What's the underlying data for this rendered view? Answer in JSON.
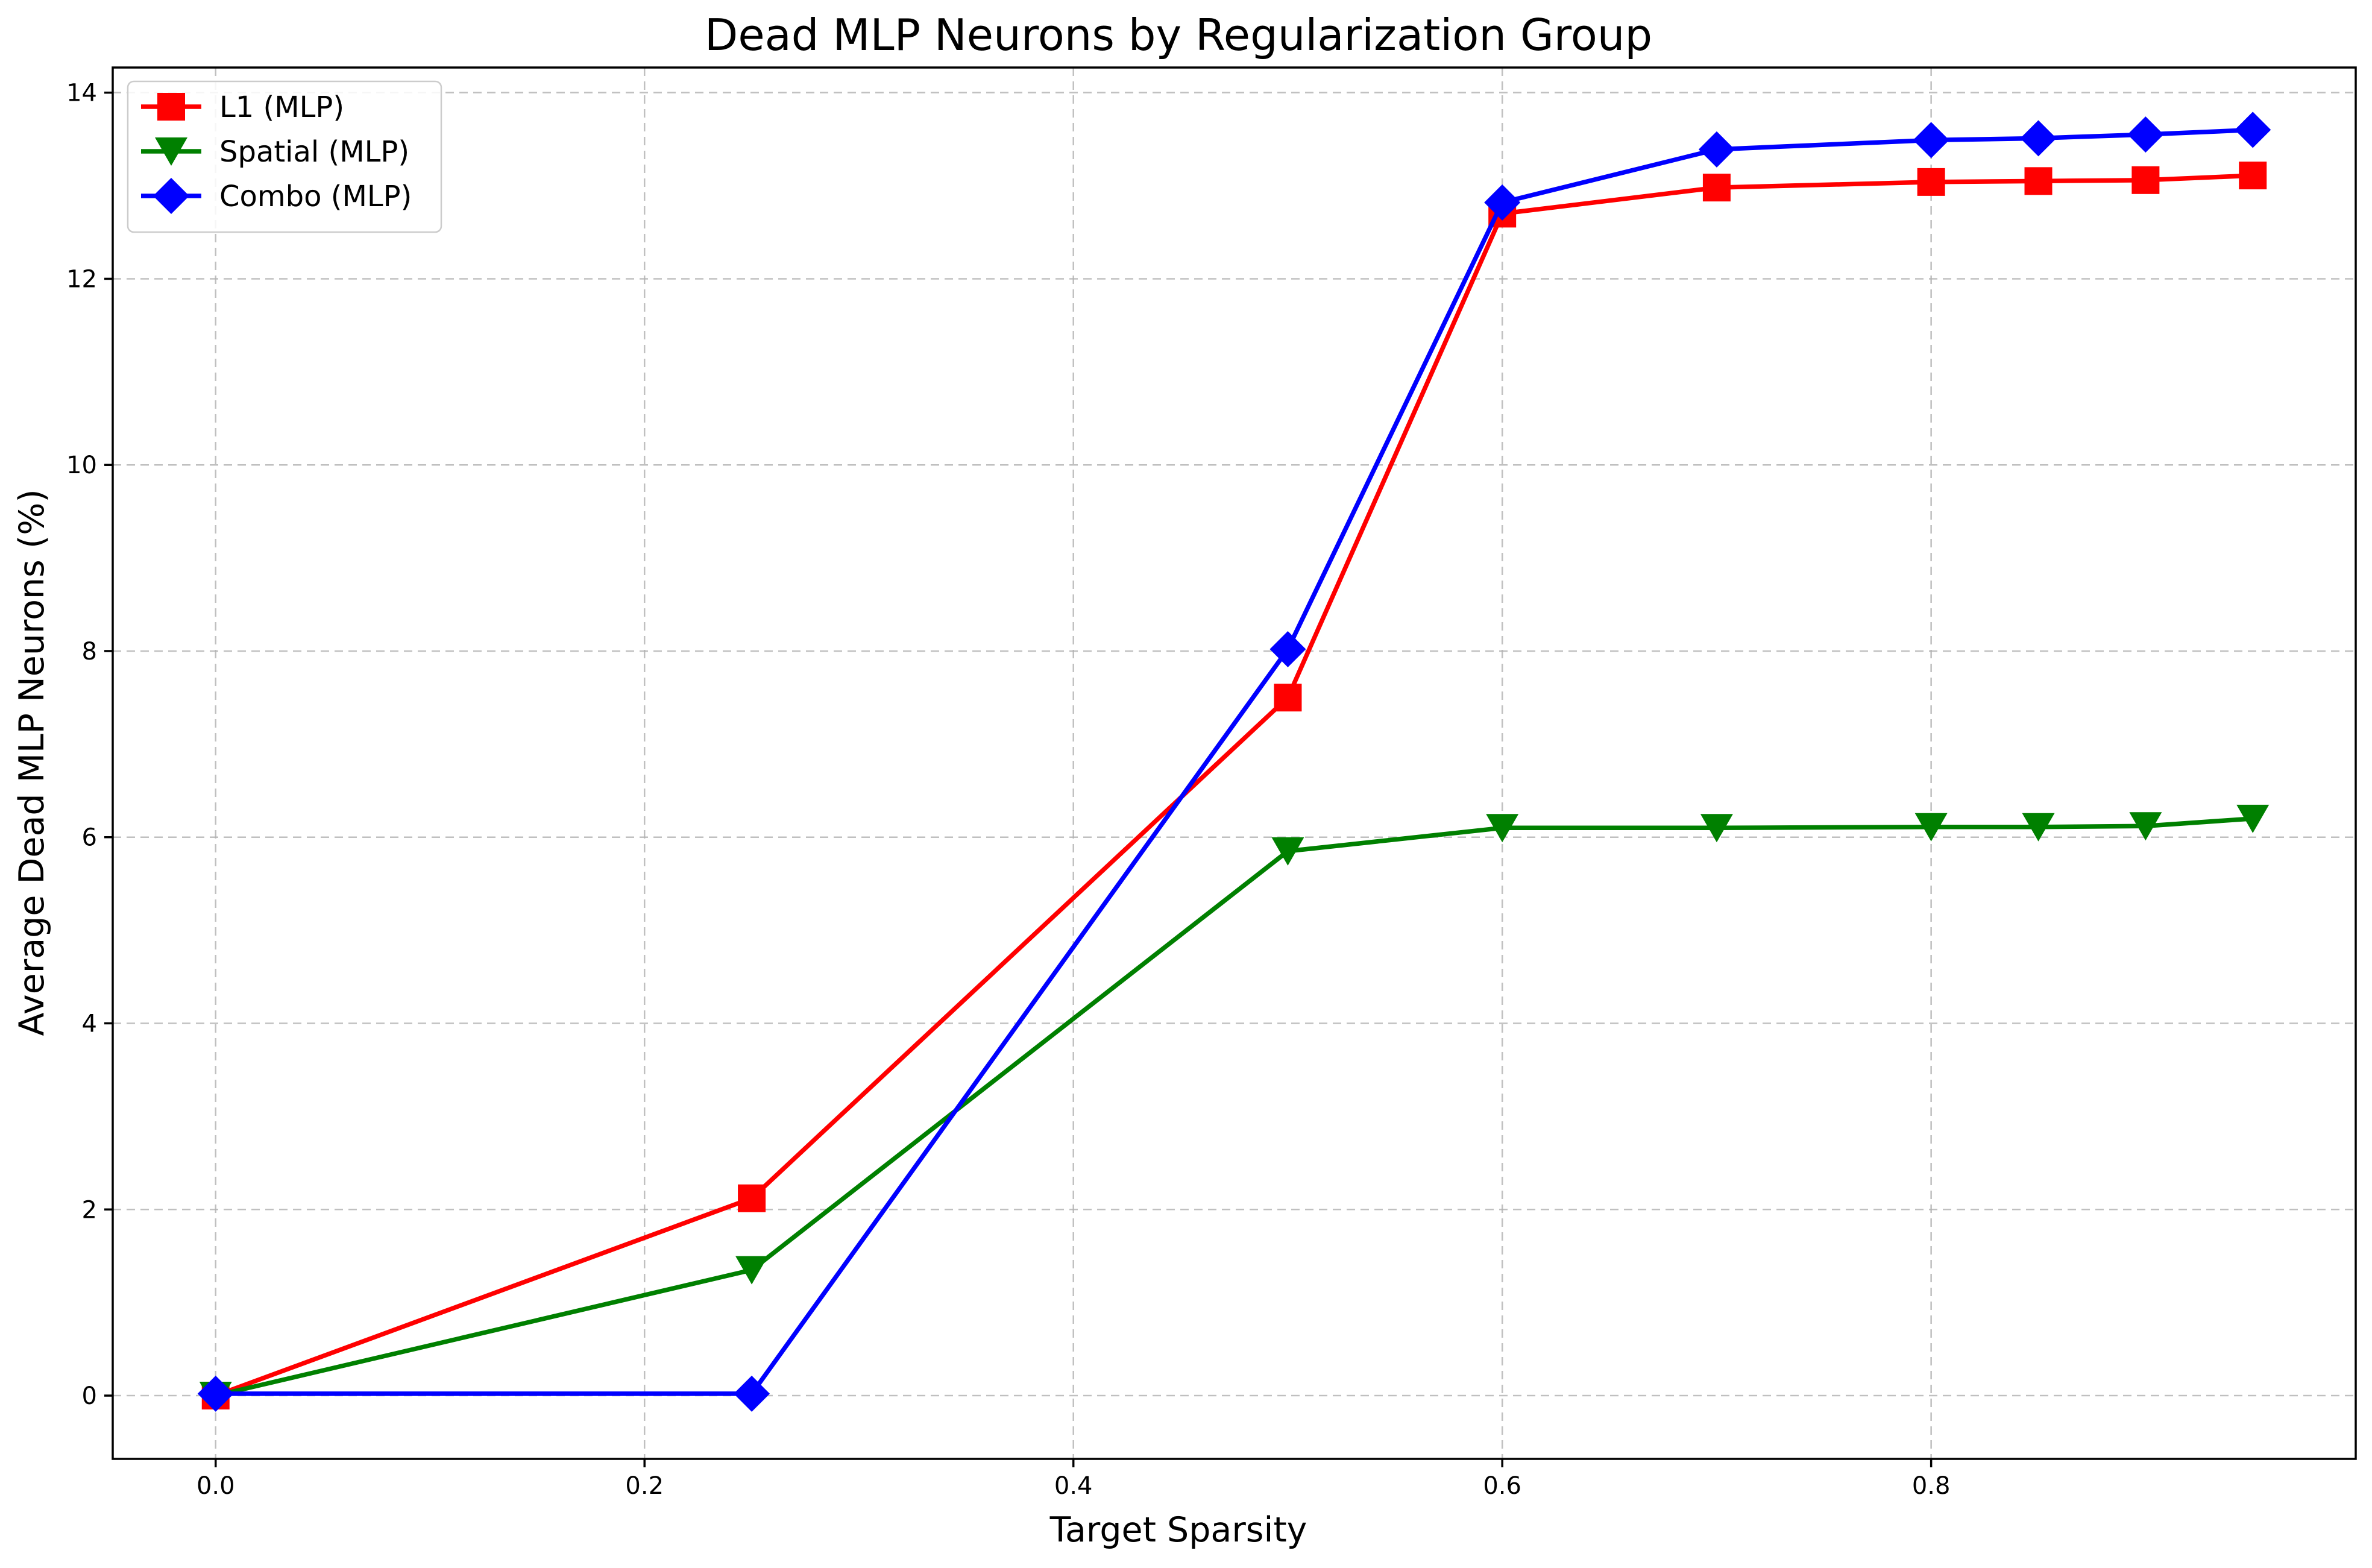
{
  "chart_data": {
    "type": "line",
    "title": "Dead MLP Neurons by Regularization Group",
    "xlabel": "Target Sparsity",
    "ylabel": "Average Dead MLP Neurons (%)",
    "xlim": [
      -0.048,
      0.998
    ],
    "ylim": [
      -0.68,
      14.27
    ],
    "xticks": [
      0.0,
      0.2,
      0.4,
      0.6,
      0.8
    ],
    "xtick_labels": [
      "0.0",
      "0.2",
      "0.4",
      "0.6",
      "0.8"
    ],
    "yticks": [
      0,
      2,
      4,
      6,
      8,
      10,
      12,
      14
    ],
    "ytick_labels": [
      "0",
      "2",
      "4",
      "6",
      "8",
      "10",
      "12",
      "14"
    ],
    "grid": true,
    "legend_position": "top-left",
    "series": [
      {
        "name": "L1 (MLP)",
        "color": "#ff0000",
        "marker": "square",
        "x": [
          0.0,
          0.25,
          0.5,
          0.6,
          0.7,
          0.8,
          0.85,
          0.9,
          0.95
        ],
        "y": [
          0.0,
          2.12,
          7.5,
          12.7,
          12.98,
          13.04,
          13.05,
          13.06,
          13.11
        ]
      },
      {
        "name": "Spatial (MLP)",
        "color": "#008000",
        "marker": "triangle-down",
        "x": [
          0.0,
          0.25,
          0.5,
          0.6,
          0.7,
          0.8,
          0.85,
          0.9,
          0.95
        ],
        "y": [
          0.0,
          1.35,
          5.85,
          6.1,
          6.1,
          6.11,
          6.11,
          6.12,
          6.2
        ]
      },
      {
        "name": "Combo (MLP)",
        "color": "#0000ff",
        "marker": "diamond",
        "x": [
          0.0,
          0.25,
          0.5,
          0.6,
          0.7,
          0.8,
          0.85,
          0.9,
          0.95
        ],
        "y": [
          0.02,
          0.02,
          8.02,
          12.82,
          13.39,
          13.49,
          13.51,
          13.55,
          13.6
        ]
      }
    ]
  }
}
